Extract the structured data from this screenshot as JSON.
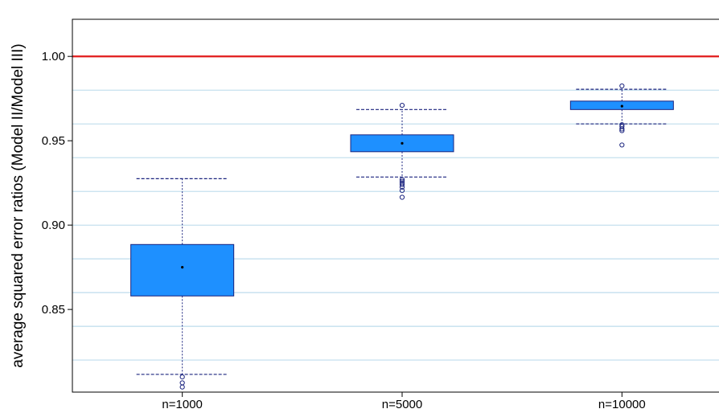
{
  "chart_data": {
    "type": "box",
    "title": "",
    "xlabel": "",
    "ylabel": "average squared error ratios (Model II/Model III)",
    "ylim": [
      0.801,
      1.022
    ],
    "yticks": [
      0.85,
      0.9,
      0.95,
      1.0
    ],
    "ytick_labels": [
      "0.85",
      "0.90",
      "0.95",
      "1.00"
    ],
    "minor_gridlines": [
      0.82,
      0.84,
      0.86,
      0.88,
      0.9,
      0.92,
      0.94,
      0.96,
      0.98,
      1.0
    ],
    "grid": true,
    "reference_line": {
      "y": 1.0,
      "color": "#e32626"
    },
    "box_color": "#1e90ff",
    "box_edge_color": "#1a237e",
    "categories": [
      "n=1000",
      "n=5000",
      "n=10000"
    ],
    "boxes": [
      {
        "label": "n=1000",
        "whisker_low": 0.8115,
        "q1": 0.858,
        "median": 0.875,
        "q3": 0.8885,
        "whisker_high": 0.9275,
        "outliers": [
          0.81,
          0.8065,
          0.804
        ]
      },
      {
        "label": "n=5000",
        "whisker_low": 0.9285,
        "q1": 0.9435,
        "median": 0.9485,
        "q3": 0.9535,
        "whisker_high": 0.9685,
        "outliers": [
          0.971,
          0.927,
          0.926,
          0.925,
          0.924,
          0.9225,
          0.9205,
          0.9165
        ]
      },
      {
        "label": "n=10000",
        "whisker_low": 0.96,
        "q1": 0.9685,
        "median": 0.9705,
        "q3": 0.9735,
        "whisker_high": 0.9805,
        "outliers": [
          0.9825,
          0.9595,
          0.9585,
          0.957,
          0.956,
          0.9475
        ]
      }
    ]
  }
}
